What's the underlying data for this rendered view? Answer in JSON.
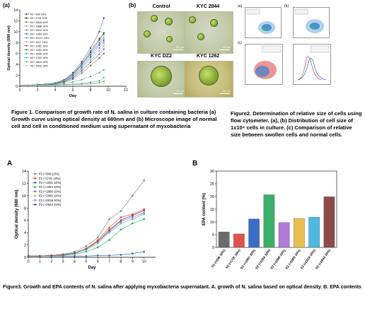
{
  "fig1": {
    "panel_a_label": "(a)",
    "panel_b_label": "(b)",
    "caption": "Figure 1. Comparison of growth rate of N. salina in culture containing bacteria (a) Growth curve using optical density at 680nm and (b) Microscope image of normal cell and cell in conditioned medium using supernatant of myxobacteria"
  },
  "fig1_micro": {
    "titles": [
      "Control",
      "KYC 2844",
      "KYC DZ2",
      "KYC 1262"
    ],
    "scale": "10 μm"
  },
  "fig2": {
    "panel_labels": [
      "(a)",
      "(b)",
      "(c)"
    ],
    "caption": "Figure2. Determination of relative size of cells using flow cytometer. (a), (b) Distribution of cell size of 1x10⁴ cells in culture. (c) Comparison of relative size between swollen cells and normal cells."
  },
  "fig3": {
    "panel_a_label": "A",
    "panel_b_label": "B",
    "caption": "Figure3. Growth and EPA contents of N. salina after applying myxobacteria supernatant. A. growth of N. salina based on optical density. B. EPA contents"
  },
  "chart_data": [
    {
      "type": "line",
      "title": "",
      "xlabel": "Day",
      "ylabel": "Optical density (680 nm)",
      "xlim": [
        0,
        12
      ],
      "ylim": [
        0,
        14
      ],
      "xticks": [
        0,
        2,
        4,
        6,
        8,
        10,
        12
      ],
      "yticks": [
        0,
        2,
        4,
        6,
        8,
        10,
        12,
        14
      ],
      "legend": "top-left",
      "x": [
        0,
        1,
        2,
        3,
        4,
        5,
        6,
        7,
        8,
        9,
        9.5
      ],
      "series": [
        {
          "name": "f/2+ DW 10%",
          "color": "#1f3b8c",
          "values": [
            0.2,
            0.2,
            0.3,
            0.4,
            0.6,
            1.2,
            2.5,
            4.5,
            7.0,
            10.0,
            12.5
          ]
        },
        {
          "name": "f/2+ CYE 10%",
          "color": "#2a2a2a",
          "values": [
            0.2,
            0.2,
            0.3,
            0.4,
            0.5,
            1.0,
            2.2,
            4.0,
            6.2,
            8.5,
            9.8
          ]
        },
        {
          "name": "f/2+ 2818 10%",
          "color": "#6a6a6a",
          "values": [
            0.2,
            0.2,
            0.3,
            0.4,
            0.5,
            1.1,
            2.3,
            4.2,
            6.5,
            8.8,
            9.5
          ]
        },
        {
          "name": "f/2+ 1888 10%",
          "color": "#8c8c8c",
          "values": [
            0.2,
            0.2,
            0.3,
            0.4,
            0.5,
            1.0,
            2.0,
            3.8,
            6.0,
            8.0,
            9.0
          ]
        },
        {
          "name": "f/2+ 2844 10%",
          "color": "#5a7ab8",
          "values": [
            0.2,
            0.2,
            0.3,
            0.4,
            0.5,
            1.0,
            2.1,
            3.9,
            5.8,
            7.8,
            8.6
          ]
        },
        {
          "name": "f/2+ 1264 10%",
          "color": "#2f6fb0",
          "values": [
            0.2,
            0.2,
            0.3,
            0.4,
            0.5,
            0.9,
            1.8,
            3.5,
            5.5,
            7.5,
            8.3
          ]
        },
        {
          "name": "f/2+ KYC1 10%",
          "color": "#3a8fc8",
          "values": [
            0.2,
            0.2,
            0.3,
            0.4,
            0.5,
            0.9,
            1.7,
            3.3,
            5.2,
            7.0,
            7.9
          ]
        },
        {
          "name": "f/2+ 1127 10%",
          "color": "#9a9a9a",
          "values": [
            0.2,
            0.2,
            0.3,
            0.4,
            0.5,
            0.9,
            1.6,
            3.0,
            4.8,
            6.5,
            7.4
          ]
        },
        {
          "name": "f/2+ 1281 10%",
          "color": "#7a3d8c",
          "values": [
            0.2,
            0.2,
            0.3,
            0.3,
            0.4,
            0.8,
            1.5,
            2.8,
            4.4,
            5.9,
            6.8
          ]
        },
        {
          "name": "f/2+ 1262 10%",
          "color": "#3e6e3e",
          "values": [
            0.2,
            0.2,
            0.3,
            0.3,
            0.4,
            0.7,
            1.3,
            2.4,
            3.8,
            5.2,
            6.0
          ]
        },
        {
          "name": "f/2+ 2095 10%",
          "color": "#4aa07a",
          "values": [
            0.2,
            0.2,
            0.2,
            0.3,
            0.3,
            0.5,
            0.8,
            1.2,
            1.8,
            2.5,
            3.0
          ]
        },
        {
          "name": "f/2+ 1322 10%",
          "color": "#2ab0b0",
          "values": [
            0.2,
            0.2,
            0.2,
            0.2,
            0.3,
            0.3,
            0.4,
            0.5,
            0.7,
            1.0,
            1.6
          ]
        },
        {
          "name": "f/2+ 2819 10%",
          "color": "#7a9a3a",
          "values": [
            0.2,
            0.2,
            0.2,
            0.2,
            0.2,
            0.3,
            0.3,
            0.4,
            0.5,
            0.7,
            0.9
          ]
        },
        {
          "name": "f/2+ 2033 10%",
          "color": "#bfbfbf",
          "values": [
            0.2,
            0.2,
            0.2,
            0.2,
            0.2,
            0.2,
            0.3,
            0.3,
            0.4,
            0.5,
            0.6
          ]
        }
      ]
    },
    {
      "type": "line",
      "title": "",
      "xlabel": "Day",
      "ylabel": "Optical density (680 nm)",
      "xlim": [
        0,
        11
      ],
      "ylim": [
        0,
        14
      ],
      "xticks": [
        0,
        1,
        2,
        3,
        4,
        5,
        6,
        7,
        8,
        9,
        10
      ],
      "yticks": [
        0,
        2,
        4,
        6,
        8,
        10,
        12,
        14
      ],
      "legend": "top-left",
      "x": [
        0,
        1,
        2,
        3,
        4,
        5,
        6,
        7,
        8,
        9,
        10
      ],
      "series": [
        {
          "name": "f/2 (+DW 10%)",
          "color": "#8c8c8c",
          "values": [
            0.2,
            0.2,
            0.3,
            0.5,
            0.9,
            1.8,
            3.2,
            6.2,
            7.5,
            10.0,
            12.5
          ]
        },
        {
          "name": "f/2 (+CYE 10%)",
          "color": "#e05a4e",
          "values": [
            0.2,
            0.2,
            0.3,
            0.4,
            0.7,
            1.4,
            2.8,
            4.8,
            6.5,
            7.0,
            7.8
          ]
        },
        {
          "name": "f/2 (+1001 10%)",
          "color": "#3a6fc8",
          "values": [
            0.2,
            0.2,
            0.2,
            0.2,
            0.2,
            0.2,
            0.3,
            0.3,
            0.4,
            0.6,
            0.9
          ]
        },
        {
          "name": "f/2 (+1264 10%)",
          "color": "#3ab06a",
          "values": [
            0.2,
            0.2,
            0.3,
            0.3,
            0.5,
            0.9,
            1.6,
            2.8,
            4.5,
            5.5,
            6.2
          ]
        },
        {
          "name": "f/2 (+1888 10%)",
          "color": "#9a6ad0",
          "values": [
            0.2,
            0.2,
            0.3,
            0.4,
            0.7,
            1.3,
            2.5,
            4.2,
            5.8,
            6.5,
            7.2
          ]
        },
        {
          "name": "f/2 (+2065 10%)",
          "color": "#e8b84a",
          "values": [
            0.2,
            0.2,
            0.3,
            0.4,
            0.7,
            1.3,
            2.5,
            4.5,
            6.0,
            6.8,
            7.6
          ]
        },
        {
          "name": "f/2 (+2818 10%)",
          "color": "#4fb8e0",
          "values": [
            0.2,
            0.2,
            0.3,
            0.4,
            0.6,
            1.2,
            2.3,
            4.0,
            5.5,
            6.2,
            7.0
          ]
        },
        {
          "name": "f/2 (+2844 10%)",
          "color": "#8c4a4a",
          "values": [
            0.2,
            0.2,
            0.3,
            0.4,
            0.7,
            1.4,
            2.6,
            4.4,
            6.0,
            6.8,
            7.6
          ]
        }
      ]
    },
    {
      "type": "bar",
      "title": "",
      "xlabel": "",
      "ylabel": "EPA content (%)",
      "ylim": [
        0,
        30
      ],
      "yticks": [
        0,
        5,
        10,
        15,
        20,
        25,
        30
      ],
      "categories": [
        "f/2 (+DW 10%)",
        "f/2 (+CYE 10%)",
        "f/2 (+1001 10%)",
        "f/2 (+1264 10%)",
        "f/2 (+1888 10%)",
        "f/2 (+2065 10%)",
        "f/2 (+2818 10%)",
        "f/2 (+2844 10%)"
      ],
      "values": [
        6.1,
        5.3,
        11.2,
        20.7,
        9.8,
        11.4,
        11.9,
        19.9
      ],
      "colors": [
        "#6b6b6b",
        "#e0524a",
        "#3a6fc8",
        "#3ab06a",
        "#b07ad8",
        "#e8c050",
        "#4fb8e0",
        "#8c4a4a"
      ]
    }
  ]
}
